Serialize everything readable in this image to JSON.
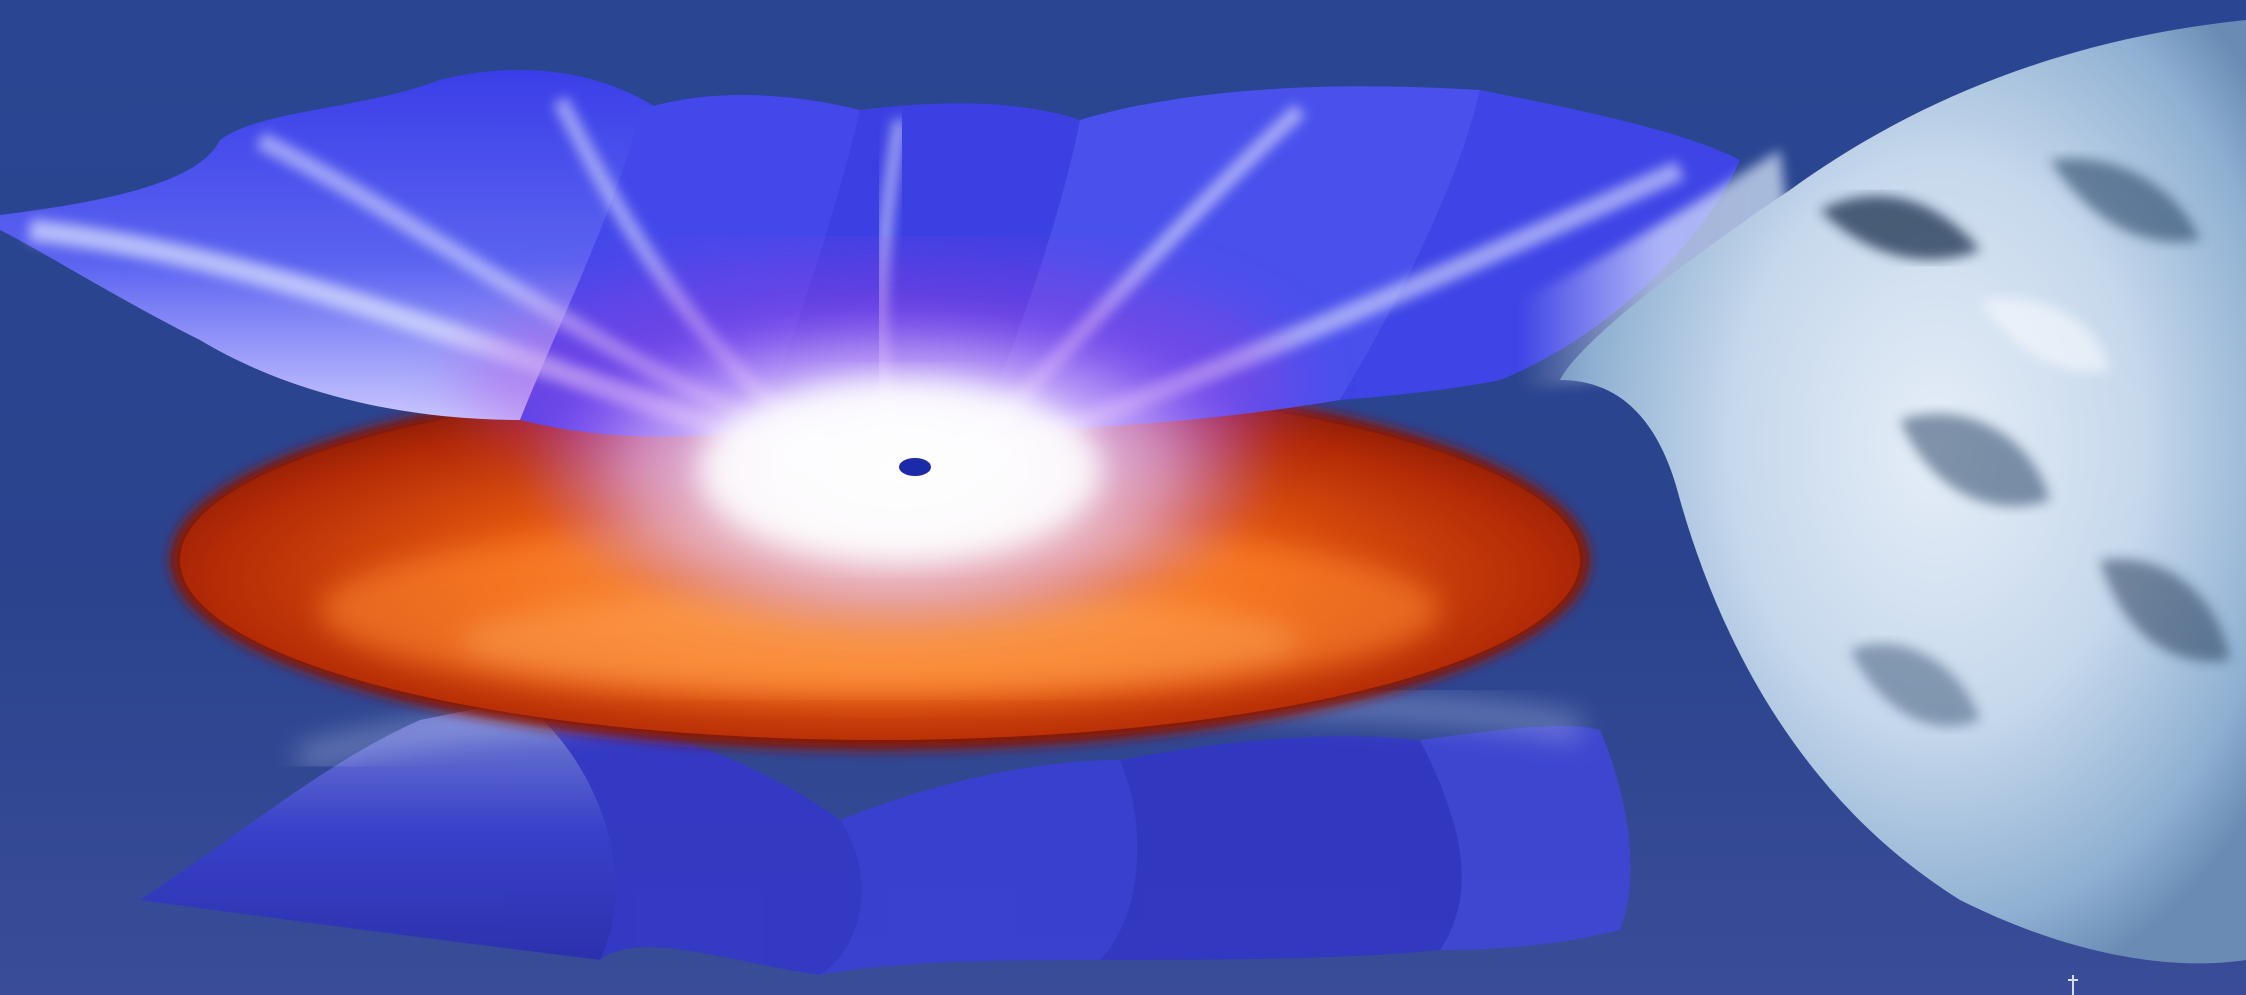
{
  "scene": {
    "type": "artist illustration",
    "subjects": [
      "black-hole",
      "accretion-disk",
      "magnetic-wind-outflow",
      "companion-star"
    ]
  },
  "colors": {
    "background": "#2a4490",
    "disk_outer": "#a81d05",
    "disk_mid": "#e0520e",
    "disk_glow": "#ff9a3c",
    "outflow": "#3a3ee0",
    "outflow_light": "#c9d6ff",
    "core": "#ffffff",
    "star_light": "#dbe8f6",
    "star_dark": "#1d3350"
  }
}
